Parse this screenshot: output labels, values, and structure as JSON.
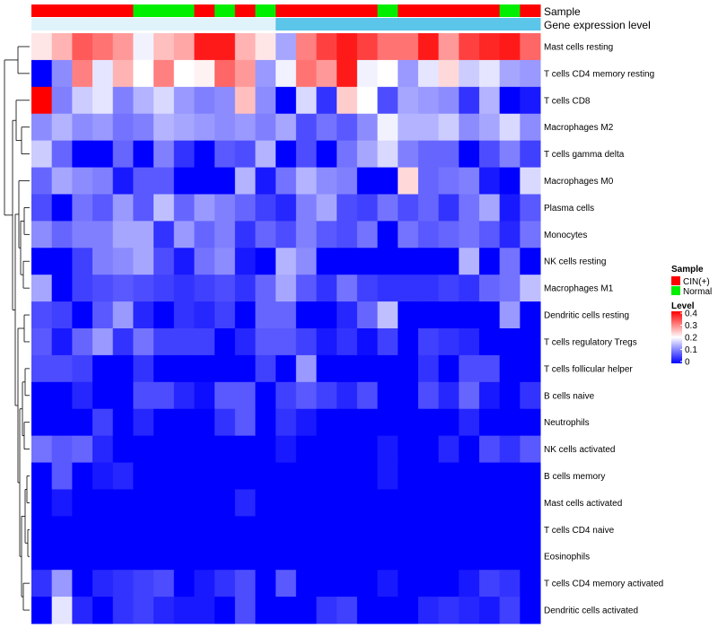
{
  "chart_data": {
    "type": "heatmap",
    "title": "",
    "sample_annotation": {
      "label": "Sample",
      "groups": [
        "CIN(+)",
        "CIN(+)",
        "CIN(+)",
        "CIN(+)",
        "CIN(+)",
        "Normal",
        "Normal",
        "Normal",
        "CIN(+)",
        "Normal",
        "CIN(+)",
        "Normal",
        "CIN(+)",
        "CIN(+)",
        "CIN(+)",
        "CIN(+)",
        "CIN(+)",
        "Normal",
        "CIN(+)",
        "CIN(+)",
        "CIN(+)",
        "CIN(+)",
        "CIN(+)",
        "Normal",
        "CIN(+)"
      ]
    },
    "gene_expression_annotation": {
      "label": "Gene expression level",
      "values": [
        "low",
        "low",
        "low",
        "low",
        "low",
        "low",
        "low",
        "low",
        "low",
        "low",
        "low",
        "low",
        "high",
        "high",
        "high",
        "high",
        "high",
        "high",
        "high",
        "high",
        "high",
        "high",
        "high",
        "high",
        "high"
      ]
    },
    "rows": [
      {
        "name": "Mast cells resting",
        "values": [
          0.22,
          0.26,
          0.33,
          0.31,
          0.28,
          0.19,
          0.25,
          0.27,
          0.38,
          0.38,
          0.26,
          0.22,
          0.13,
          0.3,
          0.35,
          0.38,
          0.35,
          0.31,
          0.31,
          0.38,
          0.28,
          0.35,
          0.37,
          0.38,
          0.32
        ]
      },
      {
        "name": "T cells CD4 memory resting",
        "values": [
          0.0,
          0.11,
          0.3,
          0.18,
          0.26,
          0.2,
          0.3,
          0.2,
          0.21,
          0.32,
          0.28,
          0.12,
          0.19,
          0.31,
          0.28,
          0.38,
          0.19,
          0.2,
          0.12,
          0.18,
          0.23,
          0.16,
          0.18,
          0.13,
          0.12
        ]
      },
      {
        "name": "T cells CD8",
        "values": [
          0.4,
          0.1,
          0.16,
          0.18,
          0.1,
          0.14,
          0.17,
          0.12,
          0.1,
          0.11,
          0.25,
          0.11,
          0.0,
          0.17,
          0.04,
          0.24,
          0.2,
          0.06,
          0.13,
          0.12,
          0.11,
          0.04,
          0.14,
          0.0,
          0.02
        ]
      },
      {
        "name": "Macrophages M2",
        "values": [
          0.11,
          0.14,
          0.11,
          0.12,
          0.09,
          0.1,
          0.14,
          0.13,
          0.12,
          0.11,
          0.12,
          0.1,
          0.13,
          0.06,
          0.09,
          0.07,
          0.11,
          0.19,
          0.14,
          0.14,
          0.16,
          0.11,
          0.13,
          0.17,
          0.11
        ]
      },
      {
        "name": "T cells gamma delta",
        "values": [
          0.16,
          0.08,
          0.0,
          0.0,
          0.08,
          0.0,
          0.1,
          0.04,
          0.0,
          0.07,
          0.06,
          0.14,
          0.0,
          0.06,
          0.0,
          0.09,
          0.13,
          0.17,
          0.1,
          0.08,
          0.08,
          0.0,
          0.06,
          0.1,
          0.05
        ]
      },
      {
        "name": "Macrophages M0",
        "values": [
          0.08,
          0.13,
          0.11,
          0.1,
          0.02,
          0.07,
          0.07,
          0.0,
          0.0,
          0.0,
          0.14,
          0.02,
          0.09,
          0.14,
          0.11,
          0.1,
          0.0,
          0.0,
          0.23,
          0.08,
          0.09,
          0.1,
          0.02,
          0.0,
          0.17
        ]
      },
      {
        "name": "Plasma cells",
        "values": [
          0.06,
          0.0,
          0.09,
          0.07,
          0.12,
          0.07,
          0.15,
          0.08,
          0.12,
          0.1,
          0.08,
          0.05,
          0.03,
          0.1,
          0.13,
          0.06,
          0.05,
          0.09,
          0.06,
          0.08,
          0.04,
          0.09,
          0.13,
          0.02,
          0.07
        ]
      },
      {
        "name": "Monocytes",
        "values": [
          0.11,
          0.08,
          0.1,
          0.1,
          0.13,
          0.13,
          0.04,
          0.12,
          0.08,
          0.1,
          0.04,
          0.08,
          0.06,
          0.1,
          0.07,
          0.06,
          0.09,
          0.0,
          0.09,
          0.07,
          0.08,
          0.09,
          0.07,
          0.03,
          0.09
        ]
      },
      {
        "name": "NK cells resting",
        "values": [
          0.0,
          0.0,
          0.05,
          0.1,
          0.11,
          0.13,
          0.06,
          0.02,
          0.09,
          0.11,
          0.02,
          0.0,
          0.14,
          0.11,
          0.0,
          0.0,
          0.0,
          0.0,
          0.0,
          0.0,
          0.0,
          0.14,
          0.0,
          0.09,
          0.0
        ]
      },
      {
        "name": "Macrophages M1",
        "values": [
          0.13,
          0.0,
          0.05,
          0.06,
          0.07,
          0.06,
          0.05,
          0.04,
          0.05,
          0.06,
          0.04,
          0.08,
          0.13,
          0.07,
          0.04,
          0.09,
          0.05,
          0.04,
          0.04,
          0.04,
          0.05,
          0.04,
          0.08,
          0.09,
          0.15
        ]
      },
      {
        "name": "Dendritic cells resting",
        "values": [
          0.06,
          0.05,
          0.0,
          0.07,
          0.12,
          0.03,
          0.0,
          0.04,
          0.03,
          0.05,
          0.0,
          0.08,
          0.08,
          0.0,
          0.0,
          0.03,
          0.08,
          0.15,
          0.0,
          0.0,
          0.0,
          0.0,
          0.0,
          0.12,
          0.0
        ]
      },
      {
        "name": "T cells regulatory  Tregs",
        "values": [
          0.07,
          0.02,
          0.08,
          0.12,
          0.04,
          0.09,
          0.05,
          0.05,
          0.05,
          0.0,
          0.03,
          0.07,
          0.07,
          0.05,
          0.02,
          0.04,
          0.01,
          0.05,
          0.0,
          0.05,
          0.04,
          0.03,
          0.0,
          0.0,
          0.0
        ]
      },
      {
        "name": "T cells follicular helper",
        "values": [
          0.06,
          0.06,
          0.05,
          0.0,
          0.0,
          0.04,
          0.0,
          0.0,
          0.0,
          0.0,
          0.0,
          0.05,
          0.0,
          0.12,
          0.0,
          0.0,
          0.0,
          0.0,
          0.0,
          0.04,
          0.0,
          0.06,
          0.06,
          0.0,
          0.0
        ]
      },
      {
        "name": "B cells naive",
        "values": [
          0.0,
          0.0,
          0.03,
          0.0,
          0.0,
          0.06,
          0.06,
          0.03,
          0.01,
          0.07,
          0.07,
          0.0,
          0.05,
          0.07,
          0.05,
          0.03,
          0.06,
          0.0,
          0.0,
          0.06,
          0.03,
          0.08,
          0.02,
          0.0,
          0.04
        ]
      },
      {
        "name": "Neutrophils",
        "values": [
          0.0,
          0.0,
          0.0,
          0.05,
          0.0,
          0.03,
          0.0,
          0.0,
          0.0,
          0.04,
          0.07,
          0.0,
          0.04,
          0.02,
          0.0,
          0.0,
          0.0,
          0.0,
          0.0,
          0.0,
          0.0,
          0.03,
          0.0,
          0.0,
          0.0
        ]
      },
      {
        "name": "NK cells activated",
        "values": [
          0.09,
          0.07,
          0.08,
          0.03,
          0.0,
          0.0,
          0.0,
          0.0,
          0.0,
          0.0,
          0.0,
          0.0,
          0.02,
          0.0,
          0.0,
          0.0,
          0.0,
          0.02,
          0.0,
          0.0,
          0.03,
          0.0,
          0.06,
          0.04,
          0.07
        ]
      },
      {
        "name": "B cells memory",
        "values": [
          0.0,
          0.07,
          0.0,
          0.02,
          0.03,
          0.0,
          0.0,
          0.0,
          0.0,
          0.0,
          0.0,
          0.0,
          0.0,
          0.0,
          0.0,
          0.0,
          0.0,
          0.02,
          0.0,
          0.0,
          0.0,
          0.0,
          0.0,
          0.0,
          0.0
        ]
      },
      {
        "name": "Mast cells activated",
        "values": [
          0.0,
          0.02,
          0.0,
          0.0,
          0.0,
          0.0,
          0.0,
          0.0,
          0.0,
          0.0,
          0.03,
          0.0,
          0.0,
          0.0,
          0.0,
          0.0,
          0.0,
          0.0,
          0.0,
          0.0,
          0.0,
          0.0,
          0.0,
          0.0,
          0.0
        ]
      },
      {
        "name": "T cells CD4 naive",
        "values": [
          0.0,
          0.0,
          0.0,
          0.0,
          0.0,
          0.0,
          0.0,
          0.0,
          0.0,
          0.0,
          0.0,
          0.0,
          0.0,
          0.0,
          0.0,
          0.0,
          0.0,
          0.0,
          0.0,
          0.0,
          0.0,
          0.0,
          0.0,
          0.0,
          0.0
        ]
      },
      {
        "name": "Eosinophils",
        "values": [
          0.0,
          0.0,
          0.0,
          0.0,
          0.0,
          0.0,
          0.0,
          0.0,
          0.0,
          0.0,
          0.0,
          0.0,
          0.0,
          0.0,
          0.0,
          0.0,
          0.0,
          0.0,
          0.0,
          0.0,
          0.0,
          0.0,
          0.0,
          0.0,
          0.0
        ]
      },
      {
        "name": "T cells CD4 memory activated",
        "values": [
          0.04,
          0.12,
          0.0,
          0.03,
          0.04,
          0.05,
          0.06,
          0.0,
          0.02,
          0.04,
          0.06,
          0.0,
          0.07,
          0.0,
          0.0,
          0.0,
          0.0,
          0.02,
          0.0,
          0.0,
          0.0,
          0.02,
          0.05,
          0.04,
          0.0
        ]
      },
      {
        "name": "Dendritic cells activated",
        "values": [
          0.0,
          0.18,
          0.03,
          0.0,
          0.04,
          0.05,
          0.03,
          0.02,
          0.02,
          0.0,
          0.06,
          0.0,
          0.0,
          0.0,
          0.04,
          0.05,
          0.0,
          0.0,
          0.0,
          0.03,
          0.04,
          0.03,
          0.02,
          0.05,
          0.0
        ]
      }
    ],
    "color_scale": {
      "min": 0,
      "max": 0.4,
      "low": "#0000ff",
      "mid": "#ffffff",
      "high": "#ff0000"
    },
    "legend": {
      "position": "right",
      "sample_title": "Sample",
      "sample_entries": [
        {
          "label": "CIN(+)",
          "color": "#ff0000"
        },
        {
          "label": "Normal",
          "color": "#00ee00"
        }
      ],
      "level_title": "Level",
      "level_ticks": [
        "0.4",
        "0.3",
        "0.2",
        "0.1",
        "0"
      ]
    },
    "gene_expression_colors": {
      "low": "#e0f3fb",
      "high": "#5bc5ea"
    }
  }
}
